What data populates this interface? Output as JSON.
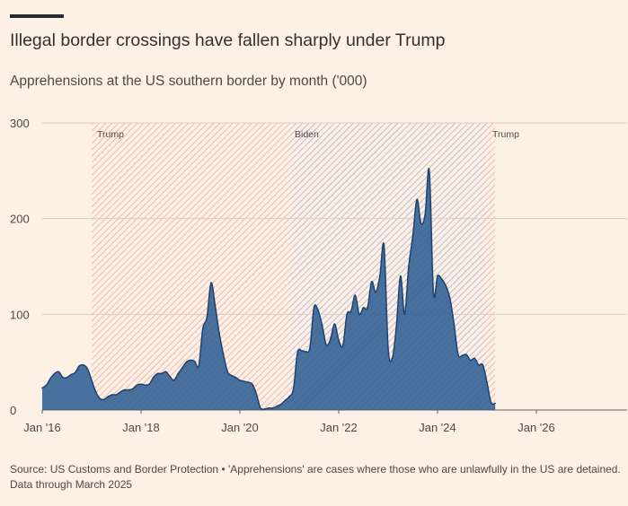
{
  "title": "Illegal border crossings have fallen sharply under Trump",
  "subtitle": "Apprehensions at the US southern border by month ('000)",
  "footer": {
    "source": "Source: US Customs and Border Protection • 'Apprehensions' are cases where those who are unlawfully in the US are detained.",
    "note": "Data through March 2025"
  },
  "colors": {
    "background": "#fdf1e6",
    "area_fill": "#2f5f94",
    "area_stroke": "#1e4270",
    "trump_band": "#f2a79c",
    "biden_band": "#b3acc9",
    "grid": "#d9cdc2",
    "title_bar": "#262a33"
  },
  "chart_data": {
    "type": "area",
    "title": "Illegal border crossings have fallen sharply under Trump",
    "subtitle": "Apprehensions at the US southern border by month ('000)",
    "xlabel": "",
    "ylabel": "",
    "xlim": [
      "2016-01",
      "2028-01"
    ],
    "ylim": [
      0,
      300
    ],
    "y_ticks": [
      0,
      100,
      200,
      300
    ],
    "x_ticks": [
      "Jan '16",
      "Jan '18",
      "Jan '20",
      "Jan '22",
      "Jan '24",
      "Jan '26"
    ],
    "x_tick_dates": [
      "2016-01",
      "2018-01",
      "2020-01",
      "2022-01",
      "2024-01",
      "2026-01"
    ],
    "grid": true,
    "legend": "none",
    "bands": [
      {
        "label": "Trump",
        "start": "2017-01",
        "end": "2021-01"
      },
      {
        "label": "Biden",
        "start": "2021-01",
        "end": "2025-01"
      },
      {
        "label": "Trump",
        "start": "2025-01",
        "end": "2025-03"
      }
    ],
    "series": [
      {
        "values": [
          [
            "2016-01",
            23
          ],
          [
            "2016-02",
            26
          ],
          [
            "2016-03",
            33
          ],
          [
            "2016-04",
            38
          ],
          [
            "2016-05",
            40
          ],
          [
            "2016-06",
            34
          ],
          [
            "2016-07",
            34
          ],
          [
            "2016-08",
            37
          ],
          [
            "2016-09",
            39
          ],
          [
            "2016-10",
            46
          ],
          [
            "2016-11",
            47
          ],
          [
            "2016-12",
            43
          ],
          [
            "2017-01",
            31
          ],
          [
            "2017-02",
            19
          ],
          [
            "2017-03",
            12
          ],
          [
            "2017-04",
            11
          ],
          [
            "2017-05",
            14
          ],
          [
            "2017-06",
            16
          ],
          [
            "2017-07",
            16
          ],
          [
            "2017-08",
            19
          ],
          [
            "2017-09",
            21
          ],
          [
            "2017-10",
            21
          ],
          [
            "2017-11",
            22
          ],
          [
            "2017-12",
            26
          ],
          [
            "2018-01",
            27
          ],
          [
            "2018-02",
            26
          ],
          [
            "2018-03",
            27
          ],
          [
            "2018-04",
            34
          ],
          [
            "2018-05",
            38
          ],
          [
            "2018-06",
            38
          ],
          [
            "2018-07",
            40
          ],
          [
            "2018-08",
            35
          ],
          [
            "2018-09",
            31
          ],
          [
            "2018-10",
            38
          ],
          [
            "2018-11",
            44
          ],
          [
            "2018-12",
            50
          ],
          [
            "2019-01",
            52
          ],
          [
            "2019-02",
            51
          ],
          [
            "2019-03",
            46
          ],
          [
            "2019-04",
            85
          ],
          [
            "2019-05",
            97
          ],
          [
            "2019-06",
            133
          ],
          [
            "2019-07",
            109
          ],
          [
            "2019-08",
            80
          ],
          [
            "2019-09",
            58
          ],
          [
            "2019-10",
            40
          ],
          [
            "2019-11",
            36
          ],
          [
            "2019-12",
            34
          ],
          [
            "2020-01",
            31
          ],
          [
            "2020-02",
            30
          ],
          [
            "2020-03",
            29
          ],
          [
            "2020-04",
            27
          ],
          [
            "2020-05",
            17
          ],
          [
            "2020-06",
            2
          ],
          [
            "2020-07",
            1
          ],
          [
            "2020-08",
            2
          ],
          [
            "2020-09",
            2
          ],
          [
            "2020-10",
            4
          ],
          [
            "2020-11",
            6
          ],
          [
            "2020-12",
            10
          ],
          [
            "2021-01",
            14
          ],
          [
            "2021-02",
            22
          ],
          [
            "2021-03",
            60
          ],
          [
            "2021-04",
            62
          ],
          [
            "2021-05",
            61
          ],
          [
            "2021-06",
            65
          ],
          [
            "2021-07",
            107
          ],
          [
            "2021-08",
            104
          ],
          [
            "2021-09",
            88
          ],
          [
            "2021-10",
            68
          ],
          [
            "2021-11",
            74
          ],
          [
            "2021-12",
            90
          ],
          [
            "2022-01",
            73
          ],
          [
            "2022-02",
            67
          ],
          [
            "2022-03",
            100
          ],
          [
            "2022-04",
            103
          ],
          [
            "2022-05",
            120
          ],
          [
            "2022-06",
            100
          ],
          [
            "2022-07",
            107
          ],
          [
            "2022-08",
            107
          ],
          [
            "2022-09",
            134
          ],
          [
            "2022-10",
            123
          ],
          [
            "2022-11",
            140
          ],
          [
            "2022-12",
            172
          ],
          [
            "2023-01",
            65
          ],
          [
            "2023-02",
            54
          ],
          [
            "2023-03",
            87
          ],
          [
            "2023-04",
            140
          ],
          [
            "2023-05",
            100
          ],
          [
            "2023-06",
            150
          ],
          [
            "2023-07",
            182
          ],
          [
            "2023-08",
            220
          ],
          [
            "2023-09",
            195
          ],
          [
            "2023-10",
            205
          ],
          [
            "2023-11",
            250
          ],
          [
            "2023-12",
            123
          ],
          [
            "2024-01",
            140
          ],
          [
            "2024-02",
            137
          ],
          [
            "2024-03",
            130
          ],
          [
            "2024-04",
            117
          ],
          [
            "2024-05",
            90
          ],
          [
            "2024-06",
            58
          ],
          [
            "2024-07",
            57
          ],
          [
            "2024-08",
            58
          ],
          [
            "2024-09",
            52
          ],
          [
            "2024-10",
            54
          ],
          [
            "2024-11",
            47
          ],
          [
            "2024-12",
            47
          ],
          [
            "2025-01",
            29
          ],
          [
            "2025-02",
            8
          ],
          [
            "2025-03",
            7
          ]
        ]
      }
    ]
  }
}
